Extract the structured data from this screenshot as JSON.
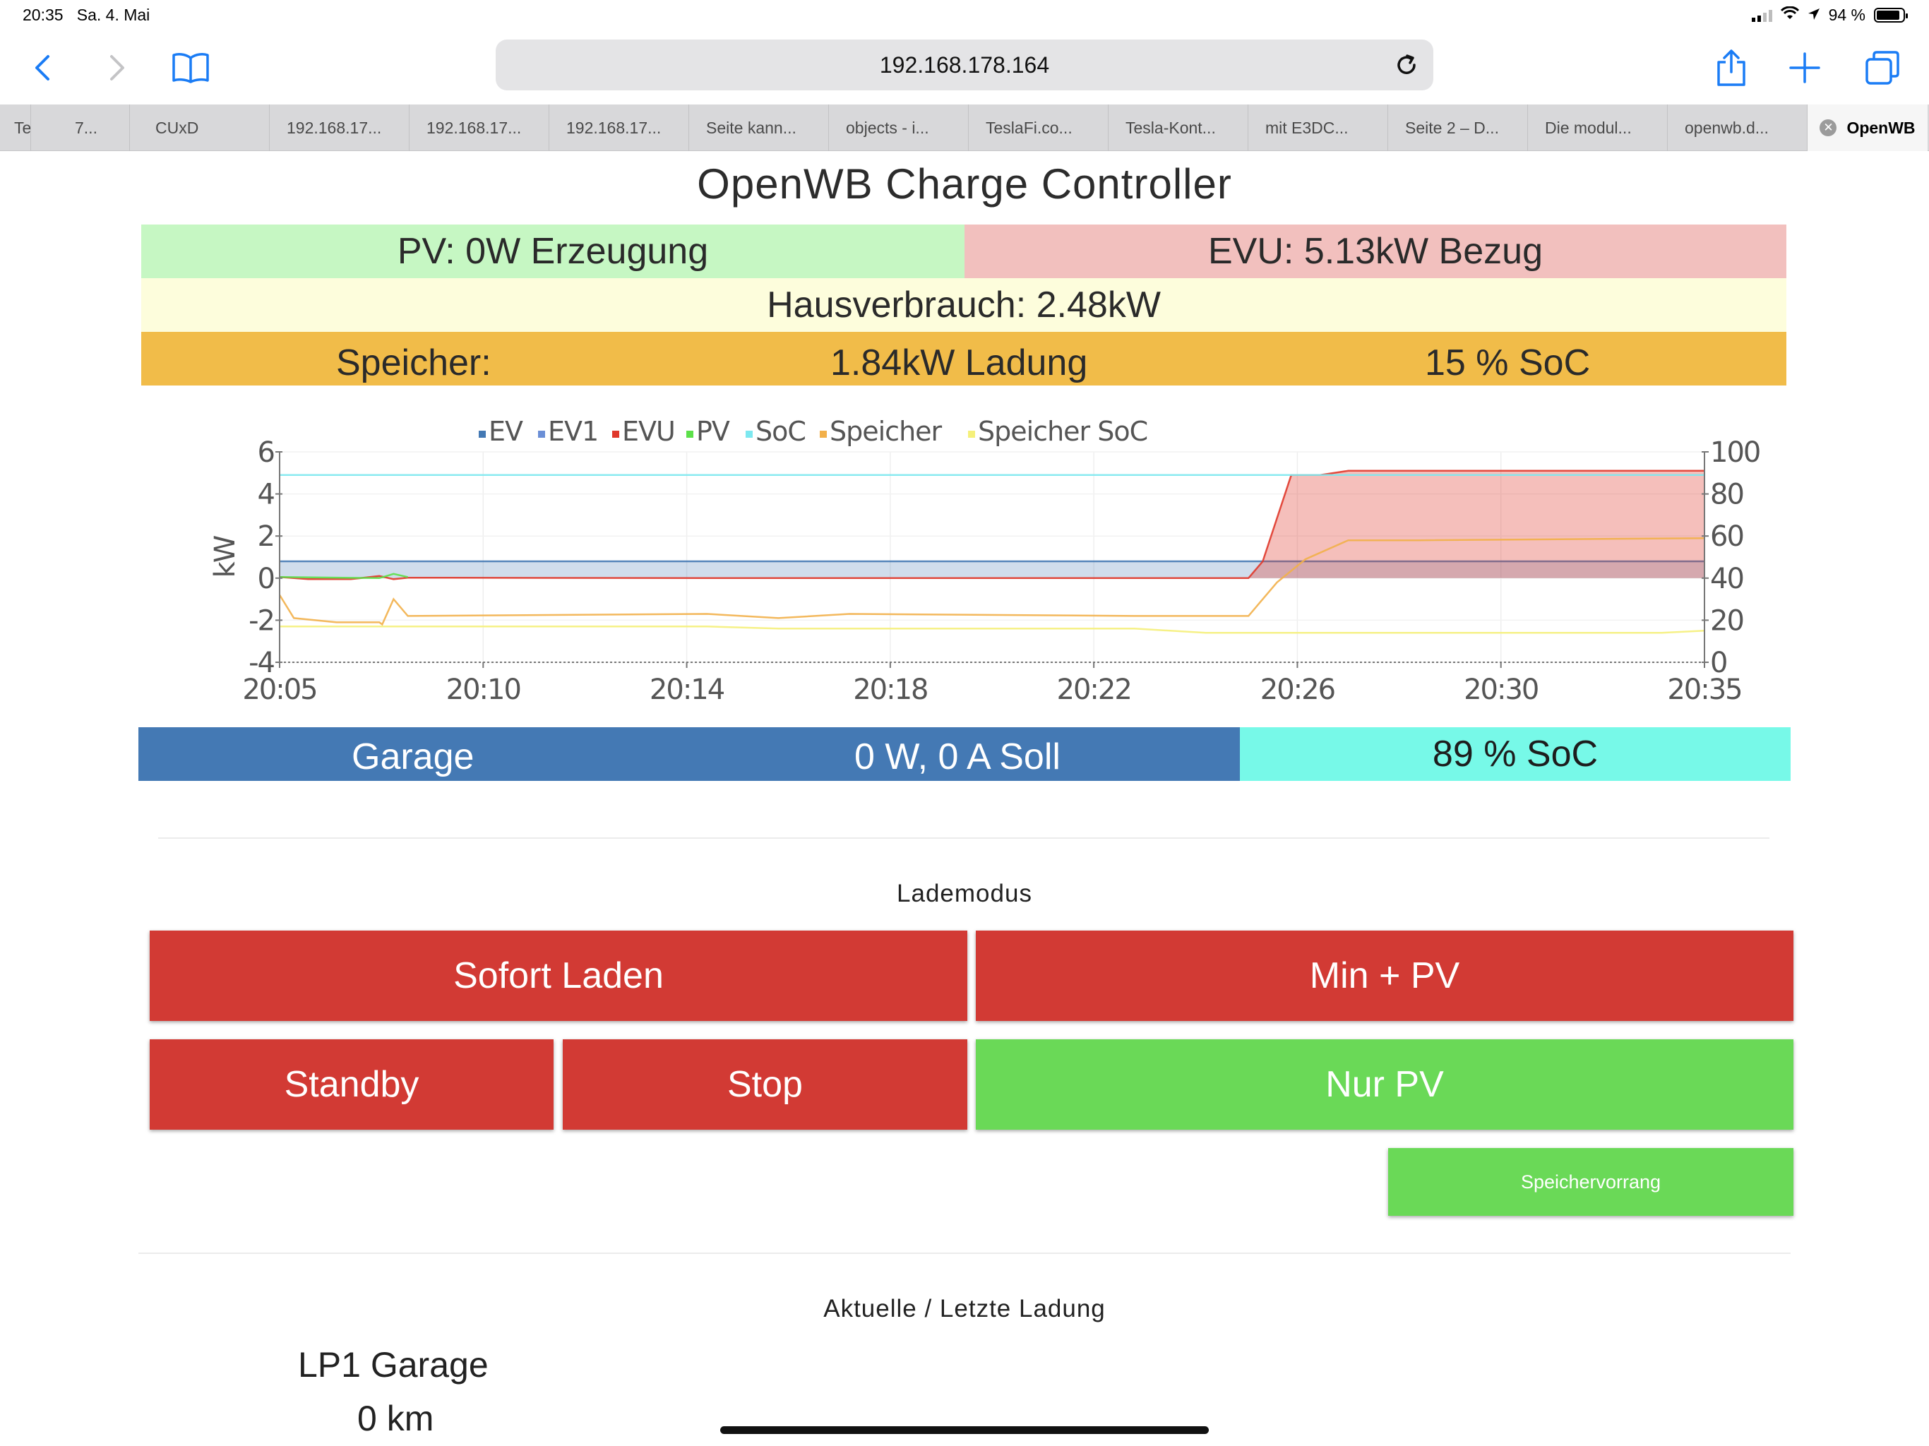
{
  "status_bar": {
    "time": "20:35",
    "date": "Sa. 4. Mai",
    "battery": "94 %"
  },
  "browser": {
    "url": "192.168.178.164",
    "tabs": [
      "Te",
      "7...",
      "CUxD",
      "192.168.17...",
      "192.168.17...",
      "192.168.17...",
      "Seite kann...",
      "objects - i...",
      "TeslaFi.co...",
      "Tesla-Kont...",
      "mit E3DC...",
      "Seite 2 – D...",
      "Die modul...",
      "openwb.d...",
      "OpenWB"
    ]
  },
  "page": {
    "title": "OpenWB Charge Controller",
    "pv": "PV: 0W Erzeugung",
    "evu": "EVU: 5.13kW Bezug",
    "hausverbrauch": "Hausverbrauch: 2.48kW",
    "speicher": {
      "label": "Speicher:",
      "power": "1.84kW Ladung",
      "soc": "15 % SoC"
    },
    "garage": {
      "label": "Garage",
      "power": "0 W, 0 A Soll",
      "soc": "89 % SoC"
    },
    "lademodus_title": "Lademodus",
    "buttons": {
      "sofort": "Sofort Laden",
      "minpv": "Min + PV",
      "standby": "Standby",
      "stop": "Stop",
      "nurpv": "Nur PV",
      "speichervorrang": "Speichervorrang"
    },
    "ladung_title": "Aktuelle / Letzte Ladung",
    "lp1_name": "LP1 Garage",
    "lp1_km": "0 km"
  },
  "colors": {
    "pv_bg": "#c6f7c3",
    "evu_bg": "#f2c0be",
    "haus_bg": "#fdfddc",
    "speicher_bg": "#f1bc49",
    "garage_bg": "#4479b4",
    "soc_bg": "#77f9e8",
    "btn_red": "#d23a34",
    "btn_green": "#6ad957"
  },
  "chart_data": {
    "type": "line",
    "ylabel": "kW",
    "ylim": [
      -4,
      6
    ],
    "y2lim": [
      0,
      100
    ],
    "yticks": [
      "6",
      "4",
      "2",
      "0",
      "-2",
      "-4"
    ],
    "y2ticks": [
      "100",
      "80",
      "60",
      "40",
      "20",
      "0"
    ],
    "xticks": [
      "20:05",
      "20:10",
      "20:14",
      "20:18",
      "20:22",
      "20:26",
      "20:30",
      "20:35"
    ],
    "legend": [
      {
        "name": "EV",
        "color": "#4479b4"
      },
      {
        "name": "EV1",
        "color": "#6b8fd6"
      },
      {
        "name": "EVU",
        "color": "#e0382b"
      },
      {
        "name": "PV",
        "color": "#5ce04a"
      },
      {
        "name": "SoC",
        "color": "#7de8f0"
      },
      {
        "name": "Speicher",
        "color": "#f2b04a"
      },
      {
        "name": "Speicher SoC",
        "color": "#f5f07a"
      }
    ],
    "series": [
      {
        "name": "EV",
        "x": [
          0,
          1.0
        ],
        "values": [
          0.8,
          0.8
        ]
      },
      {
        "name": "EVU",
        "x": [
          0,
          0.02,
          0.05,
          0.07,
          0.08,
          0.09,
          0.3,
          0.68,
          0.69,
          0.71,
          0.73,
          0.75,
          0.8,
          1.0
        ],
        "values": [
          0.05,
          -0.05,
          -0.05,
          0.1,
          -0.05,
          0.02,
          0.0,
          0.0,
          0.8,
          4.9,
          4.9,
          5.1,
          5.1,
          5.1
        ]
      },
      {
        "name": "PV",
        "x": [
          0,
          0.07,
          0.08,
          0.09
        ],
        "values": [
          0.05,
          0.0,
          0.2,
          0.05
        ]
      },
      {
        "name": "SoC",
        "x": [
          0,
          0.7,
          0.72,
          0.75,
          1.0
        ],
        "values": [
          89,
          89,
          89,
          89,
          89
        ]
      },
      {
        "name": "Speicher",
        "x": [
          0,
          0.01,
          0.04,
          0.07,
          0.072,
          0.08,
          0.09,
          0.3,
          0.35,
          0.4,
          0.6,
          0.68,
          0.7,
          0.72,
          0.75,
          0.8,
          1.0
        ],
        "values": [
          -0.8,
          -1.9,
          -2.1,
          -2.1,
          -2.2,
          -1.0,
          -1.8,
          -1.7,
          -1.9,
          -1.7,
          -1.8,
          -1.8,
          -0.2,
          0.9,
          1.8,
          1.8,
          1.9
        ]
      },
      {
        "name": "Speicher SoC",
        "x": [
          0,
          0.3,
          0.35,
          0.45,
          0.6,
          0.65,
          0.97,
          1.0
        ],
        "values": [
          17,
          17,
          16,
          16,
          16,
          14,
          14,
          15
        ]
      }
    ]
  }
}
